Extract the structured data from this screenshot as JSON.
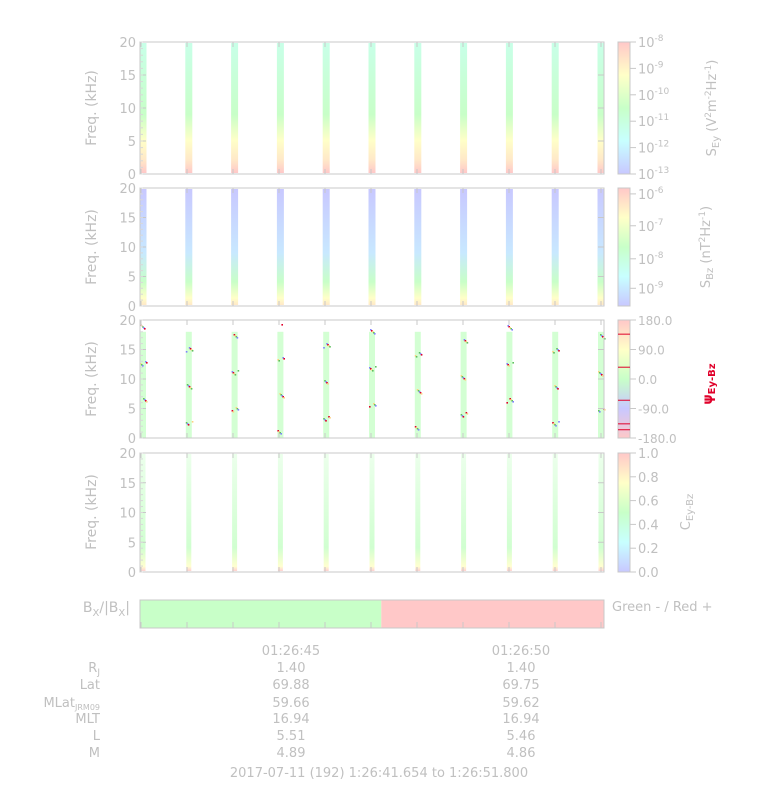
{
  "footer": "2017-07-11 (192) 1:26:41.654 to 1:26:51.800",
  "colors": {
    "axis": "#c8c8c8",
    "text": "#c0c0c0",
    "green_bar": "#c8ffc8",
    "red_bar": "#ffc8c8",
    "phase_marker": "#e0002a"
  },
  "chart_data": [
    {
      "type": "heatmap",
      "name": "panel-sey",
      "ylabel": "Freq. (kHz)",
      "ylim": [
        0,
        20
      ],
      "yticks": [
        "0",
        "5",
        "10",
        "15",
        "20"
      ],
      "colorbar_label": "S_Ey (V²m⁻²Hz⁻¹)",
      "colorbar_ticks": [
        "10-8",
        "10-9",
        "10-10",
        "10-11",
        "10-12",
        "10-13"
      ],
      "burst_times": [
        0.0,
        0.1,
        0.2,
        0.3,
        0.4,
        0.5,
        0.6,
        0.7,
        0.8,
        0.9,
        1.0
      ]
    },
    {
      "type": "heatmap",
      "name": "panel-sbz",
      "ylabel": "Freq. (kHz)",
      "ylim": [
        0,
        20
      ],
      "yticks": [
        "0",
        "5",
        "10",
        "15",
        "20"
      ],
      "colorbar_label": "S_Bz (nT²Hz⁻¹)",
      "colorbar_ticks": [
        "10-6",
        "10-7",
        "10-8",
        "10-9"
      ]
    },
    {
      "type": "heatmap",
      "name": "panel-phase",
      "ylabel": "Freq. (kHz)",
      "ylim": [
        0,
        20
      ],
      "yticks": [
        "0",
        "5",
        "10",
        "15",
        "20"
      ],
      "colorbar_label": "ψEy-Bz",
      "colorbar_ticks": [
        "180.0",
        "90.0",
        "0.0",
        "-90.0",
        "-180.0"
      ]
    },
    {
      "type": "heatmap",
      "name": "panel-coherence",
      "ylabel": "Freq. (kHz)",
      "ylim": [
        0,
        20
      ],
      "yticks": [
        "0",
        "5",
        "10",
        "15",
        "20"
      ],
      "colorbar_label": "C_Ey-Bz",
      "colorbar_ticks": [
        "1.0",
        "0.8",
        "0.6",
        "0.4",
        "0.2",
        "0.0"
      ]
    },
    {
      "type": "bar",
      "name": "bx-sign",
      "ylabel": "BX/|BX|",
      "legend": "Green - / Red +",
      "segments": [
        {
          "sign": "negative",
          "fraction": 0.52
        },
        {
          "sign": "positive",
          "fraction": 0.48
        }
      ]
    }
  ],
  "ephemeris": {
    "times": [
      "01:26:45",
      "01:26:50"
    ],
    "rows": [
      {
        "label": "RJ",
        "values": [
          "1.40",
          "1.40"
        ]
      },
      {
        "label": "Lat",
        "values": [
          "69.88",
          "69.75"
        ]
      },
      {
        "label": "MLatJRM09",
        "values": [
          "59.66",
          "59.62"
        ]
      },
      {
        "label": "MLT",
        "values": [
          "16.94",
          "16.94"
        ]
      },
      {
        "label": "L",
        "values": [
          "5.51",
          "5.46"
        ]
      },
      {
        "label": "M",
        "values": [
          "4.89",
          "4.86"
        ]
      }
    ]
  }
}
